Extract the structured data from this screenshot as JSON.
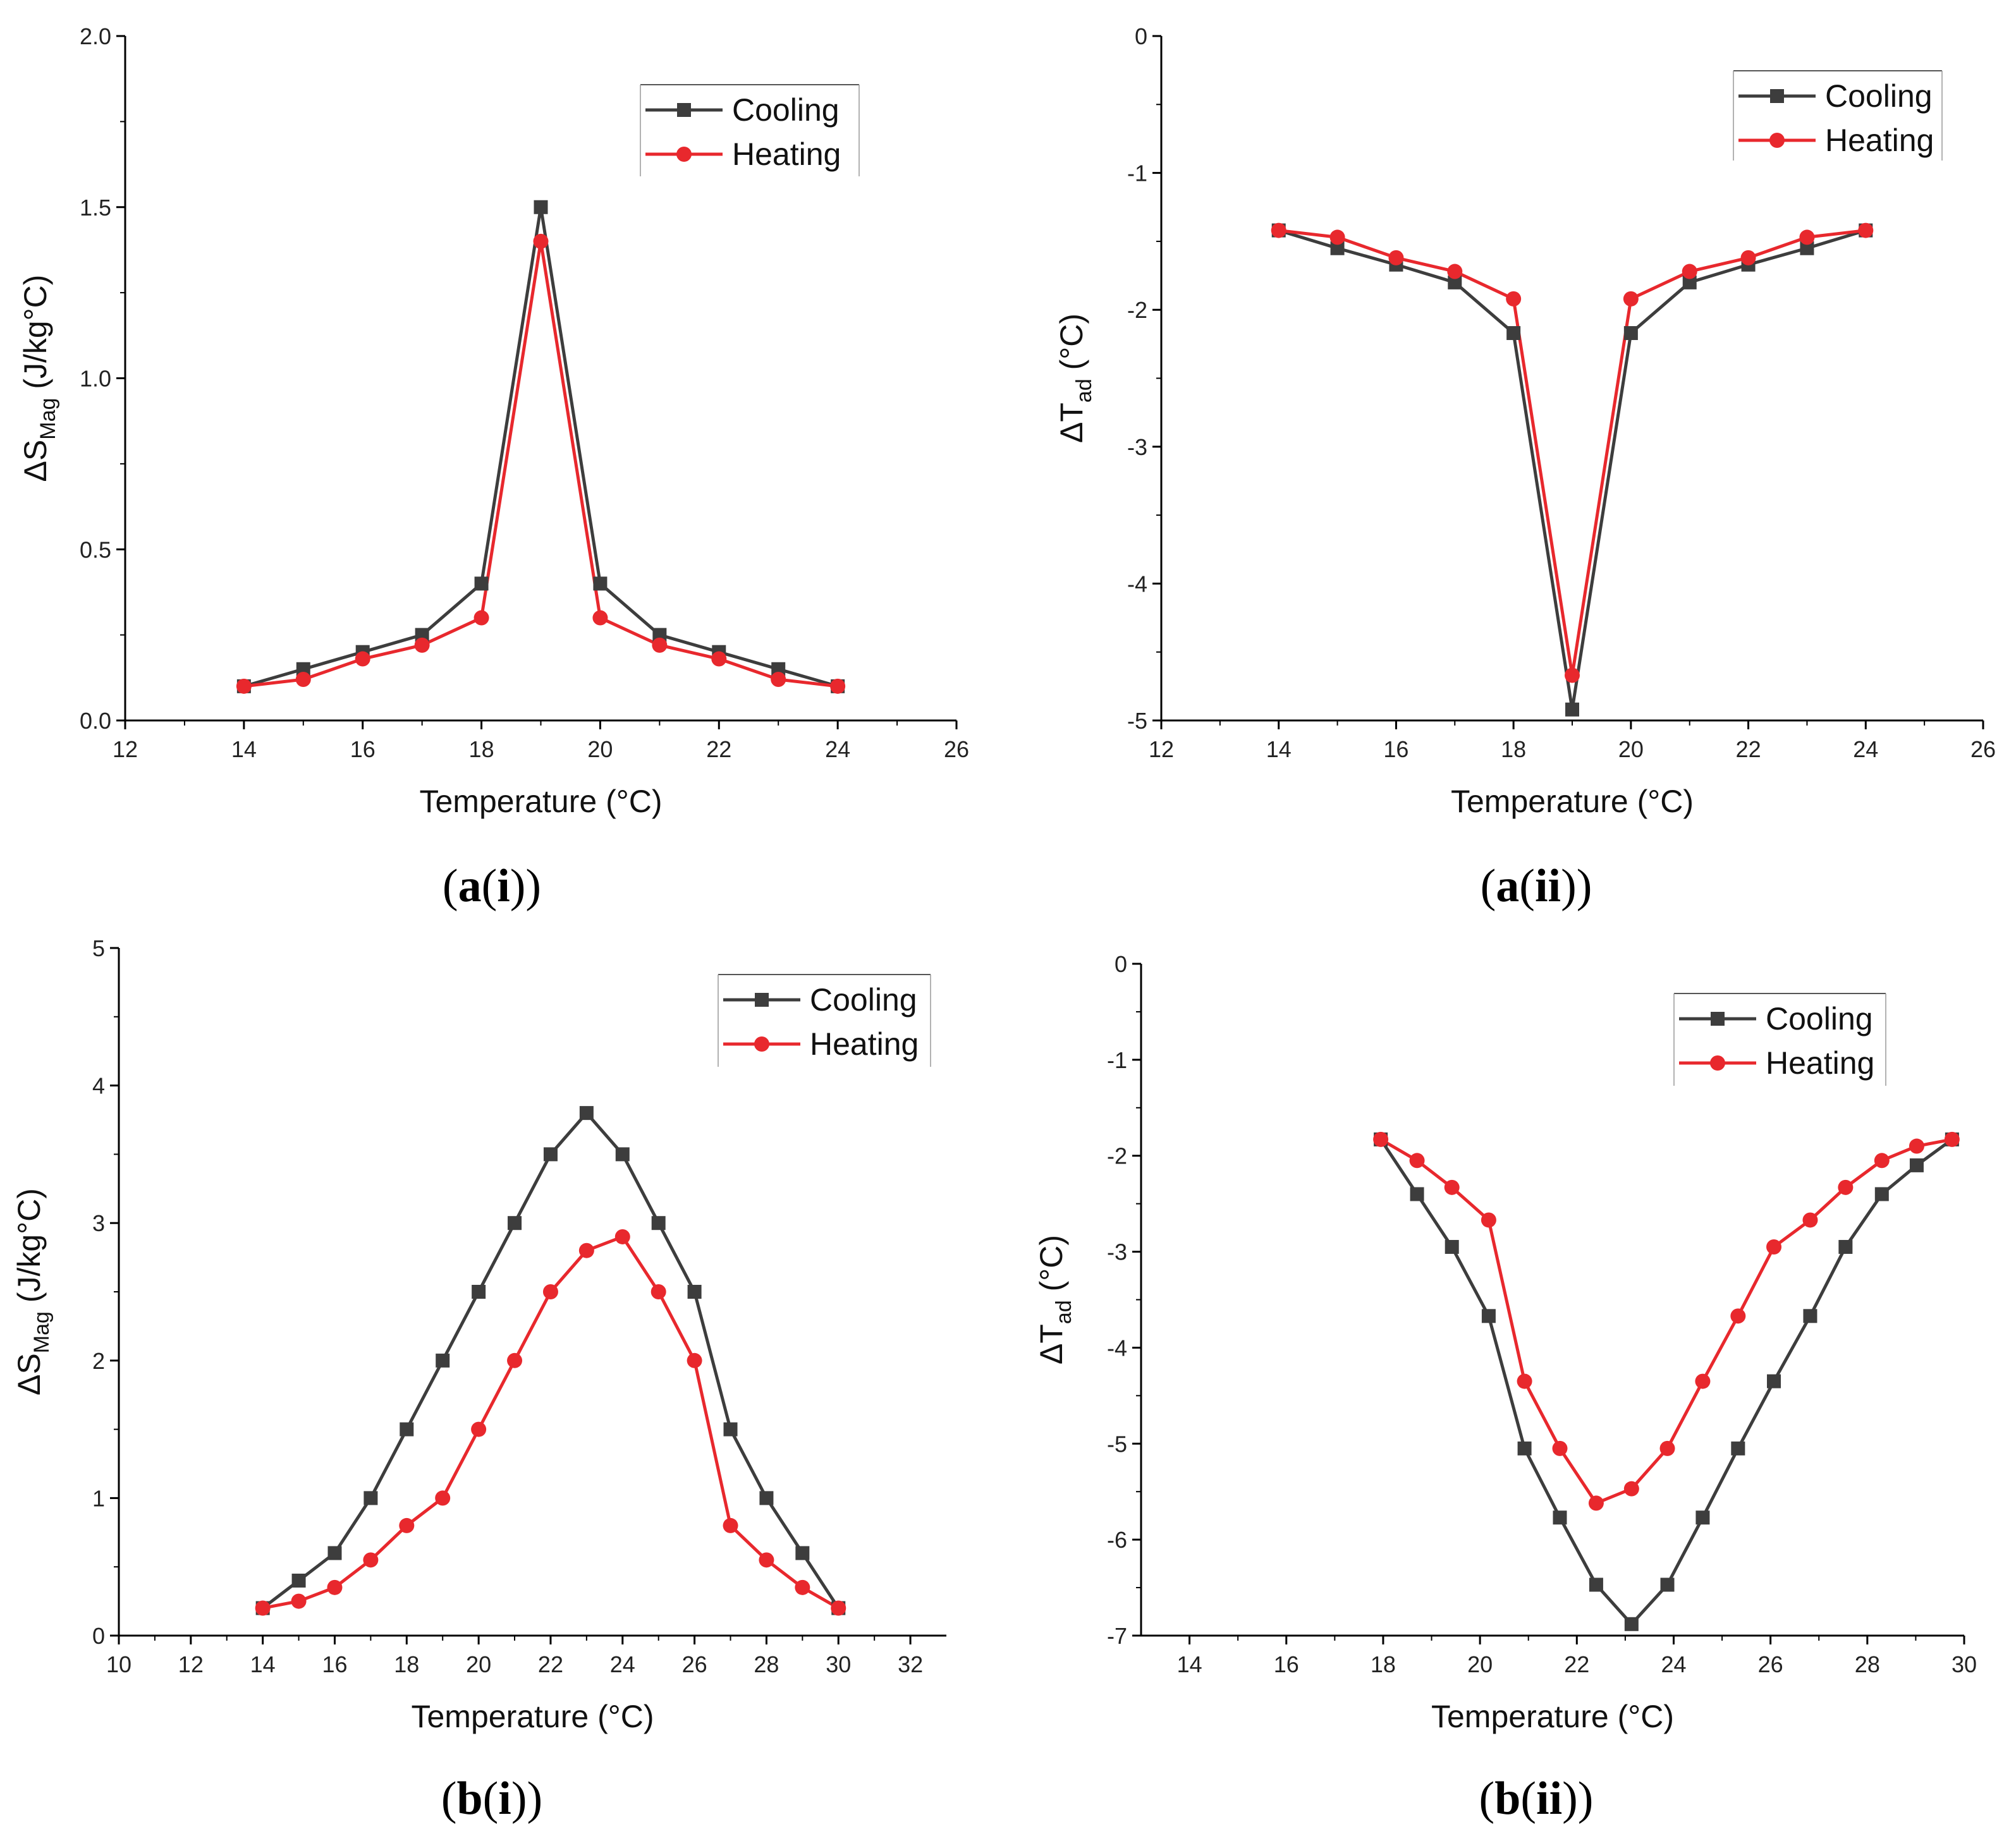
{
  "chart_data": [
    {
      "id": "ai",
      "type": "line",
      "caption": {
        "open": "(",
        "bold": "a",
        "mid": "(",
        "bold2": "i",
        "close": "))"
      },
      "xlabel": "Temperature (°C)",
      "ylabel": {
        "main": "ΔS",
        "sub": "Mag",
        "unit": " (J/kg°C)"
      },
      "xlim": [
        12,
        26
      ],
      "ylim": [
        0,
        2.0
      ],
      "xticks": [
        12,
        14,
        16,
        18,
        20,
        22,
        24,
        26
      ],
      "xtick_labels": [
        "12",
        "14",
        "16",
        "18",
        "20",
        "22",
        "24",
        "26"
      ],
      "yticks": [
        0,
        0.5,
        1.0,
        1.5,
        2.0
      ],
      "ytick_labels": [
        "0.0",
        "0.5",
        "1.0",
        "1.5",
        "2.0"
      ],
      "legend_position": "top-right",
      "series": [
        {
          "name": "Cooling",
          "color": "#3d3d3d",
          "marker": "square",
          "x": [
            14,
            15,
            16,
            17,
            18,
            19,
            20,
            21,
            22,
            23,
            24
          ],
          "y": [
            0.1,
            0.15,
            0.2,
            0.25,
            0.4,
            1.5,
            0.4,
            0.25,
            0.2,
            0.15,
            0.1
          ]
        },
        {
          "name": "Heating",
          "color": "#e8282d",
          "marker": "circle",
          "x": [
            14,
            15,
            16,
            17,
            18,
            19,
            20,
            21,
            22,
            23,
            24
          ],
          "y": [
            0.1,
            0.12,
            0.18,
            0.22,
            0.3,
            1.4,
            0.3,
            0.22,
            0.18,
            0.12,
            0.1
          ]
        }
      ]
    },
    {
      "id": "aii",
      "type": "line",
      "caption": {
        "open": "(",
        "bold": "a",
        "mid": "(",
        "bold2": "ii",
        "close": "))"
      },
      "xlabel": "Temperature (°C)",
      "ylabel": {
        "main": "ΔT",
        "sub": "ad",
        "unit": " (°C)"
      },
      "xlim": [
        12,
        26
      ],
      "ylim": [
        -5,
        0
      ],
      "xticks": [
        12,
        14,
        16,
        18,
        20,
        22,
        24,
        26
      ],
      "xtick_labels": [
        "12",
        "14",
        "16",
        "18",
        "20",
        "22",
        "24",
        "26"
      ],
      "yticks": [
        -5,
        -4,
        -3,
        -2,
        -1,
        0
      ],
      "ytick_labels": [
        "-5",
        "-4",
        "-3",
        "-2",
        "-1",
        "0"
      ],
      "legend_position": "top-right",
      "series": [
        {
          "name": "Cooling",
          "color": "#3d3d3d",
          "marker": "square",
          "x": [
            14,
            15,
            16,
            17,
            18,
            19,
            20,
            21,
            22,
            23,
            24
          ],
          "y": [
            -1.42,
            -1.55,
            -1.67,
            -1.8,
            -2.17,
            -4.92,
            -2.17,
            -1.8,
            -1.67,
            -1.55,
            -1.42
          ]
        },
        {
          "name": "Heating",
          "color": "#e8282d",
          "marker": "circle",
          "x": [
            14,
            15,
            16,
            17,
            18,
            19,
            20,
            21,
            22,
            23,
            24
          ],
          "y": [
            -1.42,
            -1.47,
            -1.62,
            -1.72,
            -1.92,
            -4.67,
            -1.92,
            -1.72,
            -1.62,
            -1.47,
            -1.42
          ]
        }
      ]
    },
    {
      "id": "bi",
      "type": "line",
      "caption": {
        "open": "(",
        "bold": "b",
        "mid": "(",
        "bold2": "i",
        "close": "))"
      },
      "xlabel": "Temperature (°C)",
      "ylabel": {
        "main": "ΔS",
        "sub": "Mag",
        "unit": " (J/kg°C)"
      },
      "xlim": [
        10,
        33
      ],
      "ylim": [
        0,
        5
      ],
      "xticks": [
        10,
        12,
        14,
        16,
        18,
        20,
        22,
        24,
        26,
        28,
        30,
        32
      ],
      "xtick_labels": [
        "10",
        "12",
        "14",
        "16",
        "18",
        "20",
        "22",
        "24",
        "26",
        "28",
        "30",
        "32"
      ],
      "yticks": [
        0,
        1,
        2,
        3,
        4,
        5
      ],
      "ytick_labels": [
        "0",
        "1",
        "2",
        "3",
        "4",
        "5"
      ],
      "legend_position": "top-right",
      "series": [
        {
          "name": "Cooling",
          "color": "#3d3d3d",
          "marker": "square",
          "x": [
            14,
            15,
            16,
            17,
            18,
            19,
            20,
            21,
            22,
            23,
            24,
            25,
            26,
            27,
            28,
            29,
            30
          ],
          "y": [
            0.2,
            0.4,
            0.6,
            1.0,
            1.5,
            2.0,
            2.5,
            3.0,
            3.5,
            3.8,
            3.5,
            3.0,
            2.5,
            1.5,
            1.0,
            0.6,
            0.2
          ]
        },
        {
          "name": "Heating",
          "color": "#e8282d",
          "marker": "circle",
          "x": [
            14,
            15,
            16,
            17,
            18,
            19,
            20,
            21,
            22,
            23,
            24,
            25,
            26,
            27,
            28,
            29,
            30
          ],
          "y": [
            0.2,
            0.25,
            0.35,
            0.55,
            0.8,
            1.0,
            1.5,
            2.0,
            2.5,
            2.8,
            2.9,
            2.5,
            2.0,
            0.8,
            0.55,
            0.35,
            0.2
          ]
        }
      ]
    },
    {
      "id": "bii",
      "type": "line",
      "caption": {
        "open": "(",
        "bold": "b",
        "mid": "(",
        "bold2": "ii",
        "close": "))"
      },
      "xlabel": "Temperature (°C)",
      "ylabel": {
        "main": "ΔT",
        "sub": "ad",
        "unit": " (°C)"
      },
      "xlim": [
        13,
        30
      ],
      "ylim": [
        -7,
        0
      ],
      "xticks": [
        14,
        16,
        18,
        20,
        22,
        24,
        26,
        28,
        30
      ],
      "xtick_labels": [
        "14",
        "16",
        "18",
        "20",
        "22",
        "24",
        "26",
        "28",
        "30"
      ],
      "yticks": [
        -7,
        -6,
        -5,
        -4,
        -3,
        -2,
        -1,
        0
      ],
      "ytick_labels": [
        "-7",
        "-6",
        "-5",
        "-4",
        "-3",
        "-2",
        "-1",
        "0"
      ],
      "legend_position": "top-right",
      "series": [
        {
          "name": "Cooling",
          "color": "#3d3d3d",
          "marker": "square",
          "x": [
            17.95,
            18.7,
            19.42,
            20.18,
            20.92,
            21.65,
            22.4,
            23.13,
            23.87,
            24.6,
            25.33,
            26.07,
            26.82,
            27.55,
            28.3,
            29.02,
            29.75
          ],
          "y": [
            -1.83,
            -2.4,
            -2.95,
            -3.67,
            -5.05,
            -5.77,
            -6.47,
            -6.88,
            -6.47,
            -5.77,
            -5.05,
            -4.35,
            -3.67,
            -2.95,
            -2.4,
            -2.1,
            -1.83
          ]
        },
        {
          "name": "Heating",
          "color": "#e8282d",
          "marker": "circle",
          "x": [
            17.95,
            18.7,
            19.42,
            20.18,
            20.92,
            21.65,
            22.4,
            23.13,
            23.87,
            24.6,
            25.33,
            26.07,
            26.82,
            27.55,
            28.3,
            29.02,
            29.75
          ],
          "y": [
            -1.83,
            -2.05,
            -2.33,
            -2.67,
            -4.35,
            -5.05,
            -5.62,
            -5.47,
            -5.05,
            -4.35,
            -3.67,
            -2.95,
            -2.67,
            -2.33,
            -2.05,
            -1.9,
            -1.83
          ]
        }
      ]
    }
  ]
}
